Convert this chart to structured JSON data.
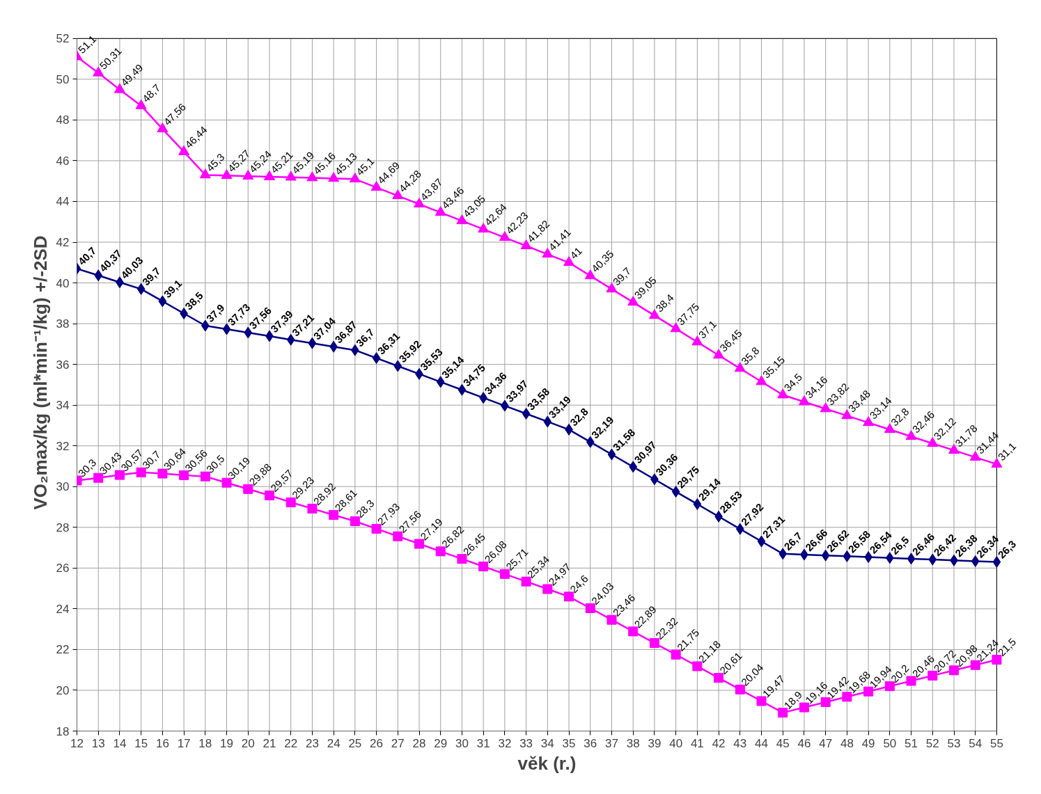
{
  "chart_data": {
    "type": "line",
    "xlabel": "věk (r.)",
    "ylabel": "VO₂max/kg (ml*min⁻¹/kg) +/-2SD",
    "x": [
      12,
      13,
      14,
      15,
      16,
      17,
      18,
      19,
      20,
      21,
      22,
      23,
      24,
      25,
      26,
      27,
      28,
      29,
      30,
      31,
      32,
      33,
      34,
      35,
      36,
      37,
      38,
      39,
      40,
      41,
      42,
      43,
      44,
      45,
      46,
      47,
      48,
      49,
      50,
      51,
      52,
      53,
      54,
      55
    ],
    "xlim": [
      12,
      55
    ],
    "xticks": [
      12,
      13,
      14,
      15,
      16,
      17,
      18,
      19,
      20,
      21,
      22,
      23,
      24,
      25,
      26,
      27,
      28,
      29,
      30,
      31,
      32,
      33,
      34,
      35,
      36,
      37,
      38,
      39,
      40,
      41,
      42,
      43,
      44,
      45,
      46,
      47,
      48,
      49,
      50,
      51,
      52,
      53,
      54,
      55
    ],
    "ylim": [
      18,
      52
    ],
    "yticks": [
      18,
      20,
      22,
      24,
      26,
      28,
      30,
      32,
      34,
      36,
      38,
      40,
      42,
      44,
      46,
      48,
      50,
      52
    ],
    "grid": true,
    "line_style": "solid",
    "series": [
      {
        "color": "#ff00ff",
        "marker": "triangle",
        "values": [
          51.1,
          50.31,
          49.49,
          48.7,
          47.56,
          46.44,
          45.3,
          45.27,
          45.24,
          45.21,
          45.19,
          45.16,
          45.13,
          45.1,
          44.69,
          44.28,
          43.87,
          43.46,
          43.05,
          42.64,
          42.23,
          41.82,
          41.41,
          41,
          40.35,
          39.7,
          39.05,
          38.4,
          37.75,
          37.1,
          36.45,
          35.8,
          35.15,
          34.5,
          34.16,
          33.82,
          33.48,
          33.14,
          32.8,
          32.46,
          32.12,
          31.78,
          31.44,
          31.1
        ],
        "value_labels": [
          "51,1",
          "50,31",
          "49,49",
          "48,7",
          "47,56",
          "46,44",
          "45,3",
          "45,27",
          "45,24",
          "45,21",
          "45,19",
          "45,16",
          "45,13",
          "45,1",
          "44,69",
          "44,28",
          "43,87",
          "43,46",
          "43,05",
          "42,64",
          "42,23",
          "41,82",
          "41,41",
          "41",
          "40,35",
          "39,7",
          "39,05",
          "38,4",
          "37,75",
          "37,1",
          "36,45",
          "35,8",
          "35,15",
          "34,5",
          "34,16",
          "33,82",
          "33,48",
          "33,14",
          "32,8",
          "32,46",
          "32,12",
          "31,78",
          "31,44",
          "31,1"
        ]
      },
      {
        "color": "#000080",
        "marker": "diamond",
        "values": [
          40.7,
          40.37,
          40.03,
          39.7,
          39.1,
          38.5,
          37.9,
          37.73,
          37.56,
          37.39,
          37.21,
          37.04,
          36.87,
          36.7,
          36.31,
          35.92,
          35.53,
          35.14,
          34.75,
          34.36,
          33.97,
          33.58,
          33.19,
          32.8,
          32.19,
          31.58,
          30.97,
          30.36,
          29.75,
          29.14,
          28.53,
          27.92,
          27.31,
          26.7,
          26.66,
          26.62,
          26.58,
          26.54,
          26.5,
          26.46,
          26.42,
          26.38,
          26.34,
          26.3
        ],
        "value_labels": [
          "40,7",
          "40,37",
          "40,03",
          "39,7",
          "39,1",
          "38,5",
          "37,9",
          "37,73",
          "37,56",
          "37,39",
          "37,21",
          "37,04",
          "36,87",
          "36,7",
          "36,31",
          "35,92",
          "35,53",
          "35,14",
          "34,75",
          "34,36",
          "33,97",
          "33,58",
          "33,19",
          "32,8",
          "32,19",
          "31,58",
          "30,97",
          "30,36",
          "29,75",
          "29,14",
          "28,53",
          "27,92",
          "27,31",
          "26,7",
          "26,66",
          "26,62",
          "26,58",
          "26,54",
          "26,5",
          "26,46",
          "26,42",
          "26,38",
          "26,34",
          "26,3"
        ]
      },
      {
        "color": "#ff00ff",
        "marker": "square",
        "values": [
          30.3,
          30.43,
          30.57,
          30.7,
          30.64,
          30.56,
          30.5,
          30.19,
          29.88,
          29.57,
          29.23,
          28.92,
          28.61,
          28.3,
          27.93,
          27.56,
          27.19,
          26.82,
          26.45,
          26.08,
          25.71,
          25.34,
          24.97,
          24.6,
          24.03,
          23.46,
          22.89,
          22.32,
          21.75,
          21.18,
          20.61,
          20.04,
          19.47,
          18.9,
          19.16,
          19.42,
          19.68,
          19.94,
          20.2,
          20.46,
          20.72,
          20.98,
          21.24,
          21.5
        ],
        "value_labels": [
          "30,3",
          "30,43",
          "30,57",
          "30,7",
          "30,64",
          "30,56",
          "30,5",
          "30,19",
          "29,88",
          "29,57",
          "29,23",
          "28,92",
          "28,61",
          "28,3",
          "27,93",
          "27,56",
          "27,19",
          "26,82",
          "26,45",
          "26,08",
          "25,71",
          "25,34",
          "24,97",
          "24,6",
          "24,03",
          "23,46",
          "22,89",
          "22,32",
          "21,75",
          "21,18",
          "20,61",
          "20,04",
          "19,47",
          "18,9",
          "19,16",
          "19,42",
          "19,68",
          "19,94",
          "20,2",
          "20,46",
          "20,72",
          "20,98",
          "21,24",
          "21,5"
        ]
      }
    ]
  }
}
